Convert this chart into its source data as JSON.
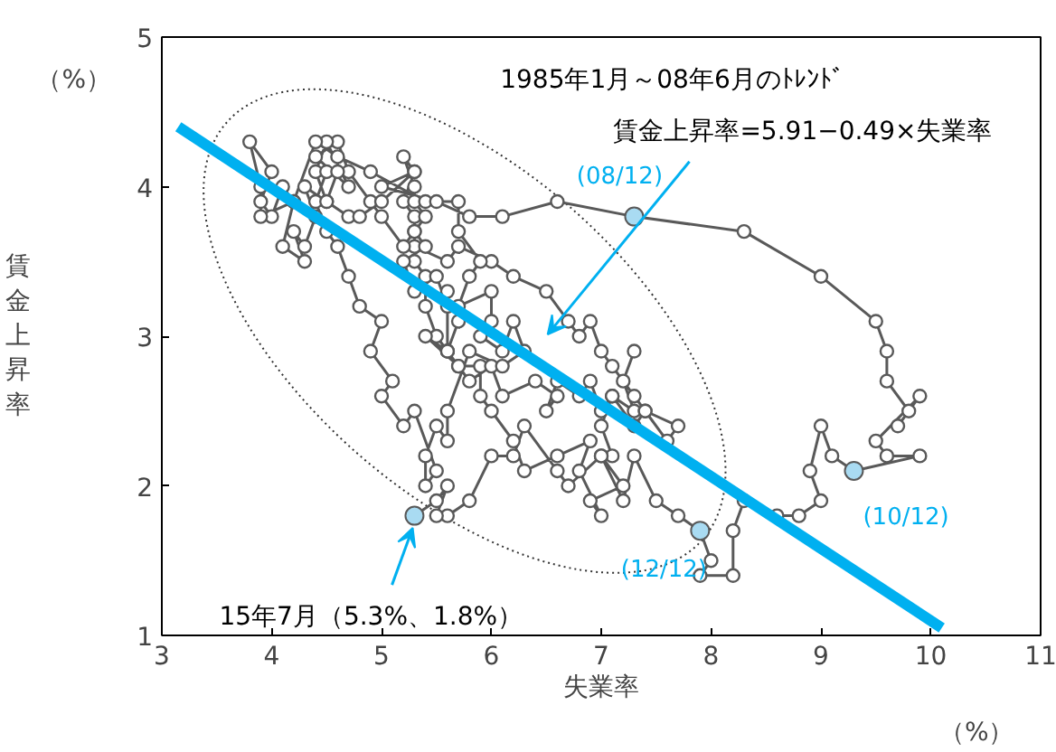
{
  "chart_data": {
    "type": "line",
    "xlabel": "失業率",
    "ylabel": "賃金上昇率",
    "xlim": [
      3,
      11
    ],
    "xticks": [
      3,
      4,
      5,
      6,
      7,
      8,
      9,
      10,
      11
    ],
    "ylim": [
      1,
      5
    ],
    "yticks": [
      1,
      2,
      3,
      4,
      5
    ],
    "grid": false,
    "marker": "circle",
    "annotations": [
      "1985年1月～08年6月のﾄﾚﾝﾄﾞ",
      "賃金上昇率=5.91−0.49×失業率",
      {
        "text": "(08/12)",
        "x": 7.3,
        "y": 3.8
      },
      {
        "text": "(10/12)",
        "x": 9.3,
        "y": 2.1
      },
      {
        "text": "(12/12)",
        "x": 7.9,
        "y": 1.7
      },
      {
        "text": "15年7月（5.3%、1.8%）",
        "x": 5.3,
        "y": 1.8
      },
      "（%）",
      "（%）"
    ],
    "series": [
      {
        "color": "#595959",
        "x": [
          7.3,
          7.2,
          7.3,
          7.1,
          7.0,
          7.1,
          7.0,
          7.2,
          6.9,
          7.0,
          6.8,
          6.9,
          6.6,
          6.3,
          6.2,
          6.0,
          5.9,
          5.9,
          5.7,
          5.5,
          5.4,
          5.4,
          5.3,
          5.3,
          5.2,
          5.3,
          5.2,
          5.3,
          5.3,
          5.4,
          5.3,
          5.3,
          5.6,
          5.7,
          6.0,
          6.2,
          6.5,
          6.7,
          6.8,
          6.9,
          7.0,
          7.1,
          7.3,
          7.4,
          7.7,
          7.6,
          7.4,
          7.3,
          7.1,
          7.0,
          6.9,
          6.8,
          6.6,
          6.5,
          6.6,
          6.4,
          6.1,
          6.0,
          5.8,
          5.6,
          5.4,
          5.7,
          5.6,
          5.7,
          5.6,
          5.6,
          5.6,
          5.5,
          5.3,
          5.2,
          5.4,
          5.3,
          5.2,
          5.0,
          4.9,
          4.7,
          4.6,
          4.4,
          4.7,
          4.5,
          4.4,
          4.5,
          4.3,
          4.4,
          4.3,
          4.2,
          4.3,
          4.1,
          4.2,
          4.1,
          4.0,
          3.9,
          4.0,
          3.8,
          3.9,
          3.9,
          4.2,
          4.4,
          4.6,
          4.9,
          5.4,
          5.7,
          5.7,
          5.9,
          5.8,
          5.7,
          6.0,
          6.0,
          5.9,
          6.1,
          6.2,
          6.3,
          6.1,
          5.8,
          5.6,
          5.6,
          5.5,
          5.4,
          5.4,
          5.5,
          5.3,
          5.2,
          5.0,
          5.1,
          4.9,
          5.0,
          4.8,
          4.7,
          4.6,
          4.5,
          4.4,
          4.5,
          4.6,
          4.5,
          4.7,
          4.8,
          5.0,
          5.3,
          5.0,
          5.5,
          5.8,
          6.1,
          6.6,
          7.3,
          8.3,
          9.0,
          9.5,
          9.6,
          9.6,
          9.8,
          9.7,
          9.9,
          9.5,
          9.6,
          9.9,
          9.3,
          9.1,
          9.0,
          8.9,
          9.0,
          8.8,
          8.6,
          8.3,
          8.2,
          8.2,
          7.9,
          8.0,
          7.9,
          7.7,
          7.5,
          7.3,
          7.2,
          7.0,
          6.7,
          6.6,
          6.3,
          6.2,
          6.0,
          5.8,
          5.6,
          5.5,
          5.6,
          5.5,
          5.3
        ],
        "values": [
          2.9,
          2.7,
          2.5,
          2.6,
          2.4,
          2.2,
          2.2,
          2.0,
          1.9,
          1.8,
          2.1,
          2.3,
          2.2,
          2.1,
          2.3,
          2.5,
          2.6,
          2.8,
          2.8,
          3.0,
          3.2,
          3.4,
          3.5,
          3.8,
          3.9,
          4.1,
          4.2,
          4.0,
          3.9,
          3.8,
          3.7,
          3.6,
          3.5,
          3.6,
          3.5,
          3.4,
          3.3,
          3.1,
          3.0,
          3.1,
          2.9,
          2.8,
          2.6,
          2.5,
          2.4,
          2.3,
          2.5,
          2.4,
          2.6,
          2.5,
          2.7,
          2.6,
          2.7,
          2.5,
          2.6,
          2.7,
          2.6,
          2.8,
          2.7,
          2.9,
          3.0,
          2.8,
          2.9,
          3.1,
          2.9,
          3.3,
          3.2,
          3.4,
          3.3,
          3.5,
          3.6,
          3.7,
          3.6,
          3.8,
          3.9,
          4.1,
          4.3,
          4.2,
          4.0,
          4.3,
          4.1,
          3.9,
          4.0,
          3.8,
          3.6,
          3.7,
          3.5,
          3.6,
          3.9,
          4.0,
          3.8,
          3.9,
          4.1,
          4.3,
          4.0,
          3.8,
          3.9,
          4.3,
          4.2,
          4.1,
          3.9,
          3.9,
          3.7,
          3.5,
          3.4,
          3.2,
          3.3,
          3.1,
          3.0,
          2.9,
          3.1,
          2.9,
          2.8,
          2.9,
          2.5,
          2.3,
          2.4,
          2.2,
          2.0,
          2.1,
          2.5,
          2.4,
          2.6,
          2.7,
          2.9,
          3.1,
          3.2,
          3.4,
          3.6,
          3.7,
          3.9,
          4.1,
          4.1,
          3.9,
          3.8,
          3.8,
          3.9,
          4.1,
          4.0,
          3.9,
          3.8,
          3.8,
          3.9,
          3.8,
          3.7,
          3.4,
          3.1,
          2.9,
          2.7,
          2.5,
          2.4,
          2.6,
          2.3,
          2.2,
          2.2,
          2.1,
          2.2,
          2.4,
          2.1,
          1.9,
          1.8,
          1.8,
          1.9,
          1.7,
          1.4,
          1.4,
          1.5,
          1.7,
          1.8,
          1.9,
          2.2,
          1.9,
          2.2,
          2.0,
          2.1,
          2.4,
          2.2,
          2.2,
          1.9,
          1.8,
          1.8,
          2.0,
          1.9,
          1.8
        ]
      },
      {
        "type": "line",
        "color": "#00b0f0",
        "marker": "none",
        "x": [
          3.15,
          10.1
        ],
        "values": [
          4.4,
          1.05
        ]
      },
      {
        "type": "scatter",
        "color": "#a9dbf2",
        "x": [
          7.3,
          9.3,
          7.9,
          5.3
        ],
        "values": [
          3.8,
          2.1,
          1.7,
          1.8
        ]
      }
    ]
  }
}
